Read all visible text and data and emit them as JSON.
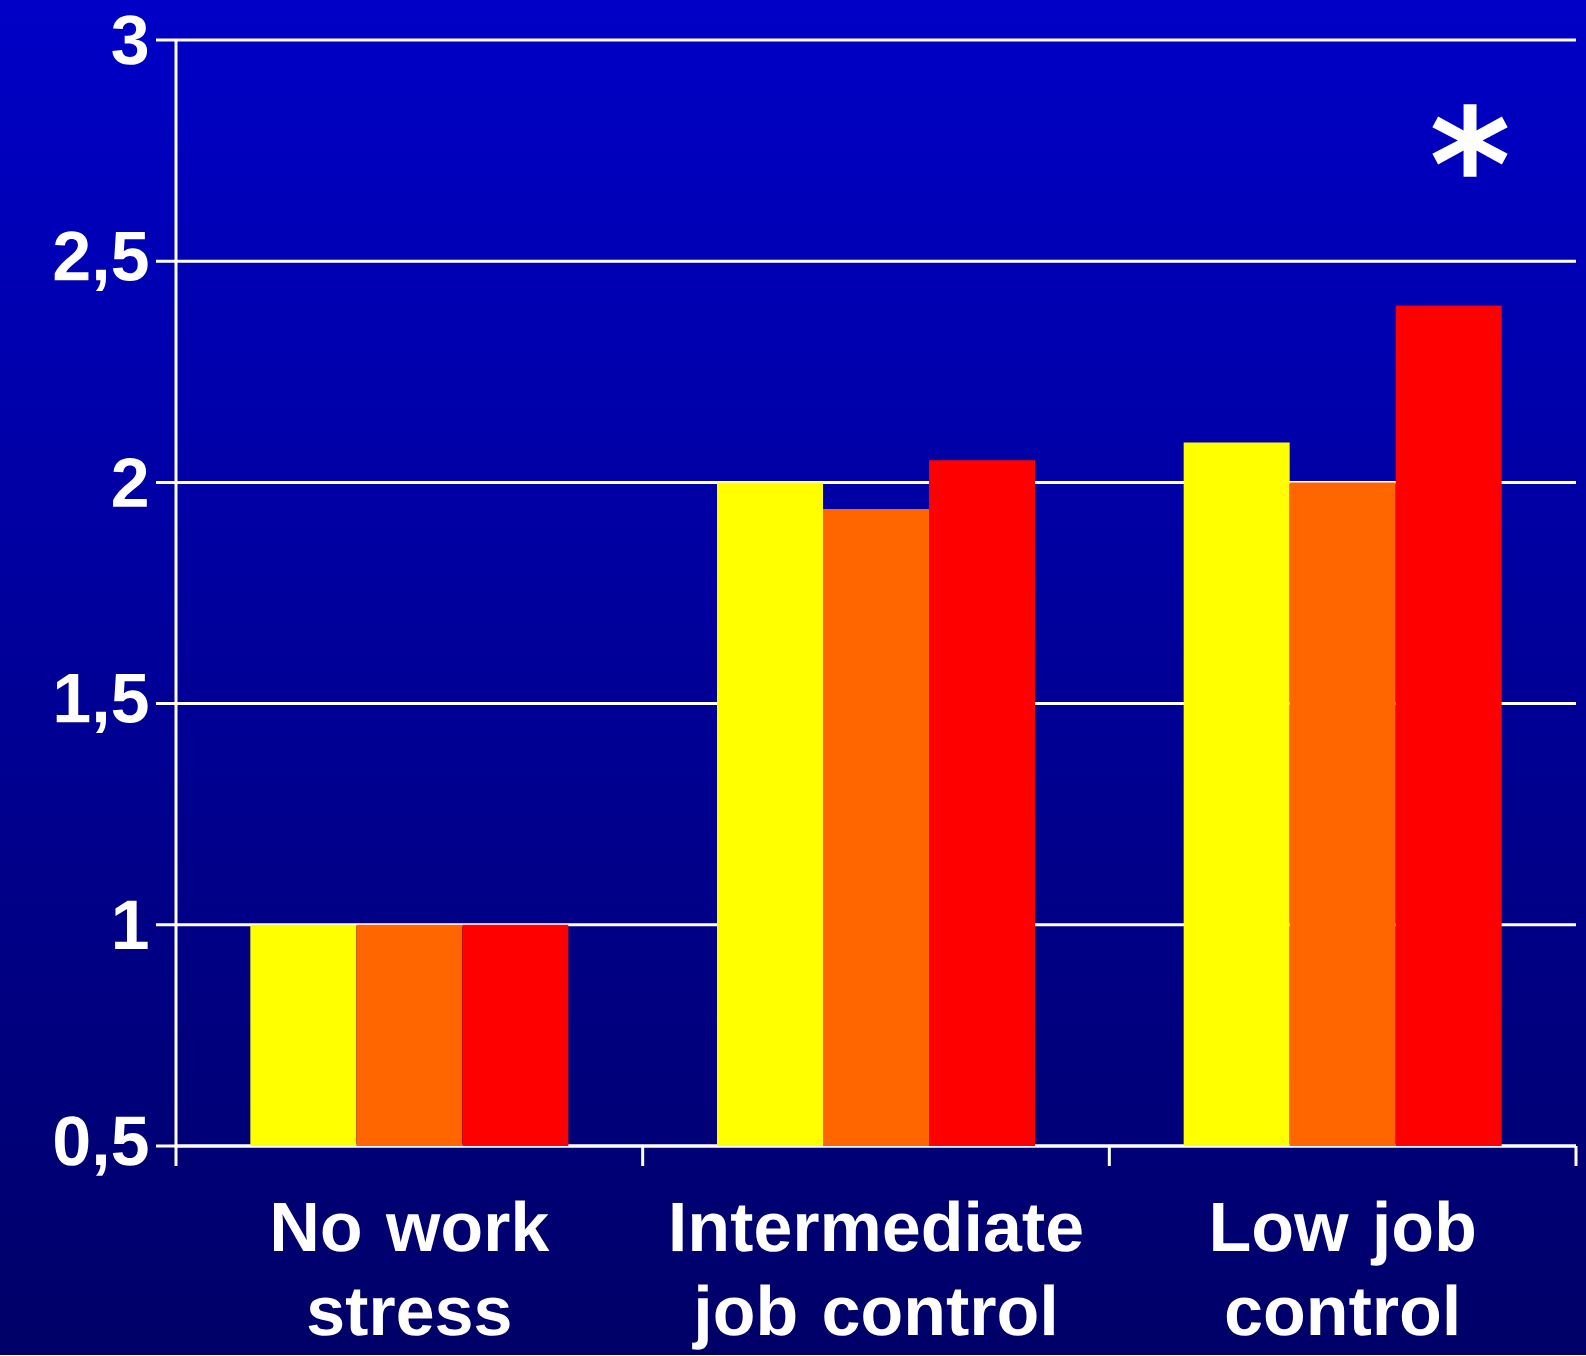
{
  "chart_data": {
    "type": "bar",
    "categories": [
      "No work stress",
      "Intermediate job control",
      "Low job control"
    ],
    "series": [
      {
        "color": "#ffff00",
        "values": [
          1,
          2,
          2.09
        ]
      },
      {
        "color": "#ff6600",
        "values": [
          1,
          1.94,
          2
        ]
      },
      {
        "color": "#ff0000",
        "values": [
          1,
          2.05,
          2.4
        ]
      }
    ],
    "ylim": [
      0.5,
      3
    ],
    "yticks": [
      {
        "value": 0.5,
        "label": "0,5"
      },
      1,
      {
        "value": 1.5,
        "label": "1,5"
      },
      2,
      {
        "value": 2.5,
        "label": "2,5"
      },
      3
    ],
    "grid": "y",
    "annotations": [
      "*"
    ]
  }
}
